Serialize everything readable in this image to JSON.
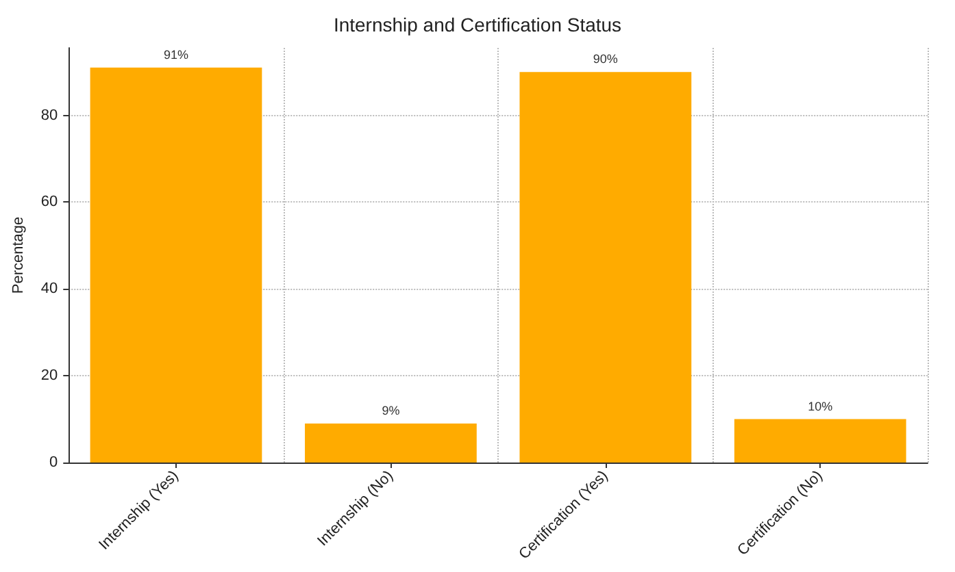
{
  "chart_data": {
    "type": "bar",
    "title": "Internship and Certification Status",
    "ylabel": "Percentage",
    "categories": [
      "Internship (Yes)",
      "Internship (No)",
      "Certification (Yes)",
      "Certification (No)"
    ],
    "values": [
      91,
      9,
      90,
      10
    ],
    "value_labels": [
      "91%",
      "9%",
      "90%",
      "10%"
    ],
    "color": "#ffab00",
    "ylim": [
      0,
      95.55
    ],
    "yticks": [
      0,
      20,
      40,
      60,
      80
    ],
    "grid": true
  }
}
